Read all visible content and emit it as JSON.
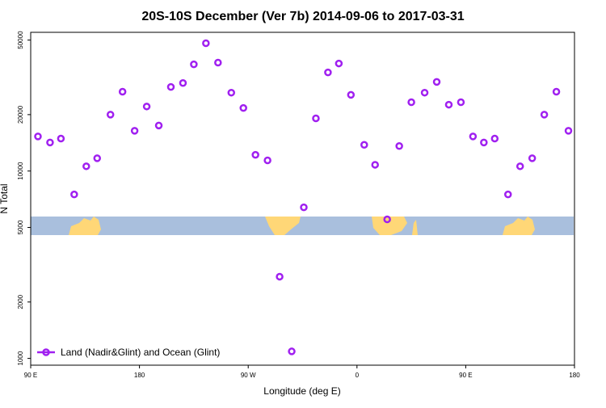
{
  "chart_data": {
    "type": "scatter",
    "title": "20S-10S December (Ver 7b)   2014-09-06 to 2017-03-31",
    "x_label": "Longitude (deg E)",
    "y_label": "N Total",
    "log_y": true,
    "legend": "lower left",
    "xlim": [
      90,
      540
    ],
    "xticks": [
      {
        "value": 90,
        "label": "90 E"
      },
      {
        "value": 180,
        "label": "180"
      },
      {
        "value": 270,
        "label": "90 W"
      },
      {
        "value": 360,
        "label": "0"
      },
      {
        "value": 450,
        "label": "90 E"
      },
      {
        "value": 540,
        "label": "180"
      }
    ],
    "ylim": [
      920,
      55000
    ],
    "yticks": [
      1000,
      2000,
      5000,
      10000,
      20000,
      50000
    ],
    "series": [
      {
        "name": "Land (Nadir&Glint) and Ocean (Glint)",
        "color": "#a020f0",
        "x": [
          96,
          106,
          115,
          126,
          136,
          145,
          156,
          166,
          176,
          186,
          196,
          206,
          216,
          225,
          235,
          245,
          256,
          266,
          276,
          286,
          296,
          306,
          316,
          326,
          336,
          345,
          355,
          366,
          375,
          385,
          395,
          405,
          416,
          426,
          436,
          446,
          456,
          465,
          474,
          485,
          495,
          505,
          515,
          525,
          535
        ],
        "values": [
          15300,
          14200,
          14900,
          7500,
          10600,
          11700,
          20000,
          26500,
          16400,
          22100,
          17500,
          28100,
          29500,
          37100,
          48100,
          37900,
          26200,
          21700,
          12200,
          11400,
          2730,
          1090,
          6400,
          19100,
          33600,
          37500,
          25500,
          13800,
          10800,
          5520,
          13600,
          23300,
          26200,
          29900,
          22600,
          23300,
          15300,
          14200,
          14900,
          7500,
          10600,
          11700,
          20000,
          26500,
          16400
        ]
      }
    ]
  }
}
